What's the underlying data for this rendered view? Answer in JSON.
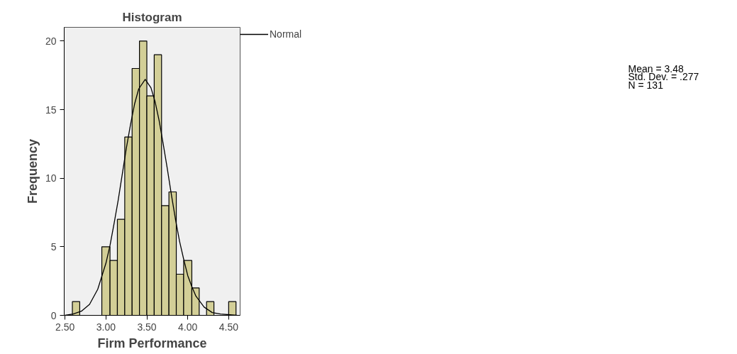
{
  "chart_data": {
    "type": "histogram",
    "title": "Histogram",
    "xlabel": "Firm Performance",
    "ylabel": "Frequency",
    "bins": [
      2.59,
      2.68,
      2.95,
      3.05,
      3.14,
      3.23,
      3.32,
      3.41,
      3.5,
      3.59,
      3.68,
      3.77,
      3.86,
      3.95,
      4.05,
      4.14,
      4.23,
      4.32,
      4.5,
      4.59
    ],
    "values": [
      1,
      0,
      5,
      4,
      7,
      13,
      18,
      20,
      16,
      19,
      8,
      9,
      3,
      4,
      2,
      0,
      1,
      0,
      1
    ],
    "color": "#d3cf97",
    "series": [
      {
        "name": "Normal",
        "type": "line",
        "color": "#000000",
        "x": [
          2.5,
          2.6,
          2.7,
          2.8,
          2.9,
          3.0,
          3.05,
          3.1,
          3.15,
          3.2,
          3.25,
          3.3,
          3.35,
          3.4,
          3.48,
          3.55,
          3.6,
          3.65,
          3.7,
          3.75,
          3.8,
          3.85,
          3.9,
          3.95,
          4.0,
          4.05,
          4.1,
          4.2,
          4.3,
          4.4,
          4.6
        ],
        "values": [
          0.0,
          0.1,
          0.3,
          0.8,
          1.9,
          3.8,
          5.1,
          6.7,
          8.4,
          10.3,
          12.2,
          13.9,
          15.4,
          16.5,
          17.2,
          16.6,
          15.6,
          14.2,
          12.5,
          10.7,
          8.8,
          7.0,
          5.4,
          4.1,
          2.9,
          2.1,
          1.4,
          0.6,
          0.2,
          0.1,
          0.0
        ]
      }
    ],
    "xlim": [
      2.49,
      4.64
    ],
    "ylim": [
      0,
      21
    ],
    "xticks": [
      {
        "value": 2.5,
        "label": "2.50"
      },
      {
        "value": 3.0,
        "label": "3.00"
      },
      {
        "value": 3.5,
        "label": "3.50"
      },
      {
        "value": 4.0,
        "label": "4.00"
      },
      {
        "value": 4.5,
        "label": "4.50"
      }
    ],
    "yticks": [
      0,
      5,
      10,
      15,
      20
    ],
    "annotations": [
      "Mean = 3.48",
      "Std. Dev. = .277",
      "N = 131"
    ],
    "legend": "top right",
    "grid": false
  }
}
